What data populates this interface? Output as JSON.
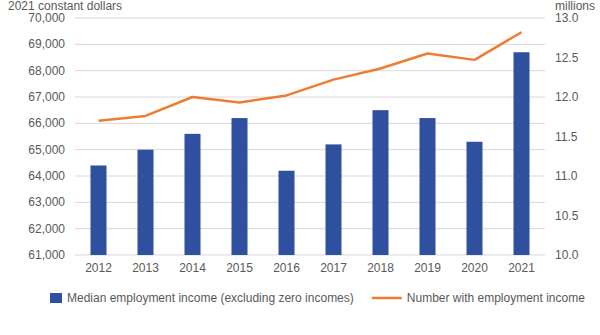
{
  "chart_data": {
    "type": "bar",
    "y_label": "2021 constant dollars",
    "y2_label": "millions",
    "categories": [
      "2012",
      "2013",
      "2014",
      "2015",
      "2016",
      "2017",
      "2018",
      "2019",
      "2020",
      "2021"
    ],
    "series": [
      {
        "name": "Median employment income (excluding zero incomes)",
        "type": "bar",
        "color": "#2f4f9f",
        "values": [
          64400,
          65000,
          65600,
          66200,
          64200,
          65200,
          66500,
          66200,
          65300,
          68700
        ]
      },
      {
        "name": "Number with employment income",
        "type": "line",
        "axis": "y2",
        "color": "#ed7d31",
        "values": [
          11.7,
          11.76,
          12.0,
          11.93,
          12.02,
          12.22,
          12.36,
          12.55,
          12.47,
          12.82
        ]
      }
    ],
    "ylim": [
      61000,
      70000
    ],
    "yticks": [
      {
        "value": 61000,
        "label": "61,000"
      },
      {
        "value": 62000,
        "label": "62,000"
      },
      {
        "value": 63000,
        "label": "63,000"
      },
      {
        "value": 64000,
        "label": "64,000"
      },
      {
        "value": 65000,
        "label": "65,000"
      },
      {
        "value": 66000,
        "label": "66,000"
      },
      {
        "value": 67000,
        "label": "67,000"
      },
      {
        "value": 68000,
        "label": "68,000"
      },
      {
        "value": 69000,
        "label": "69,000"
      },
      {
        "value": 70000,
        "label": "70,000"
      }
    ],
    "y2lim": [
      10,
      13
    ],
    "y2ticks": [
      {
        "value": 10,
        "label": "10.0"
      },
      10.5,
      {
        "value": 11,
        "label": "11.0"
      },
      11.5,
      {
        "value": 12,
        "label": "12.0"
      },
      12.5,
      {
        "value": 13,
        "label": "13.0"
      }
    ],
    "grid": true,
    "legend": "bottom"
  }
}
